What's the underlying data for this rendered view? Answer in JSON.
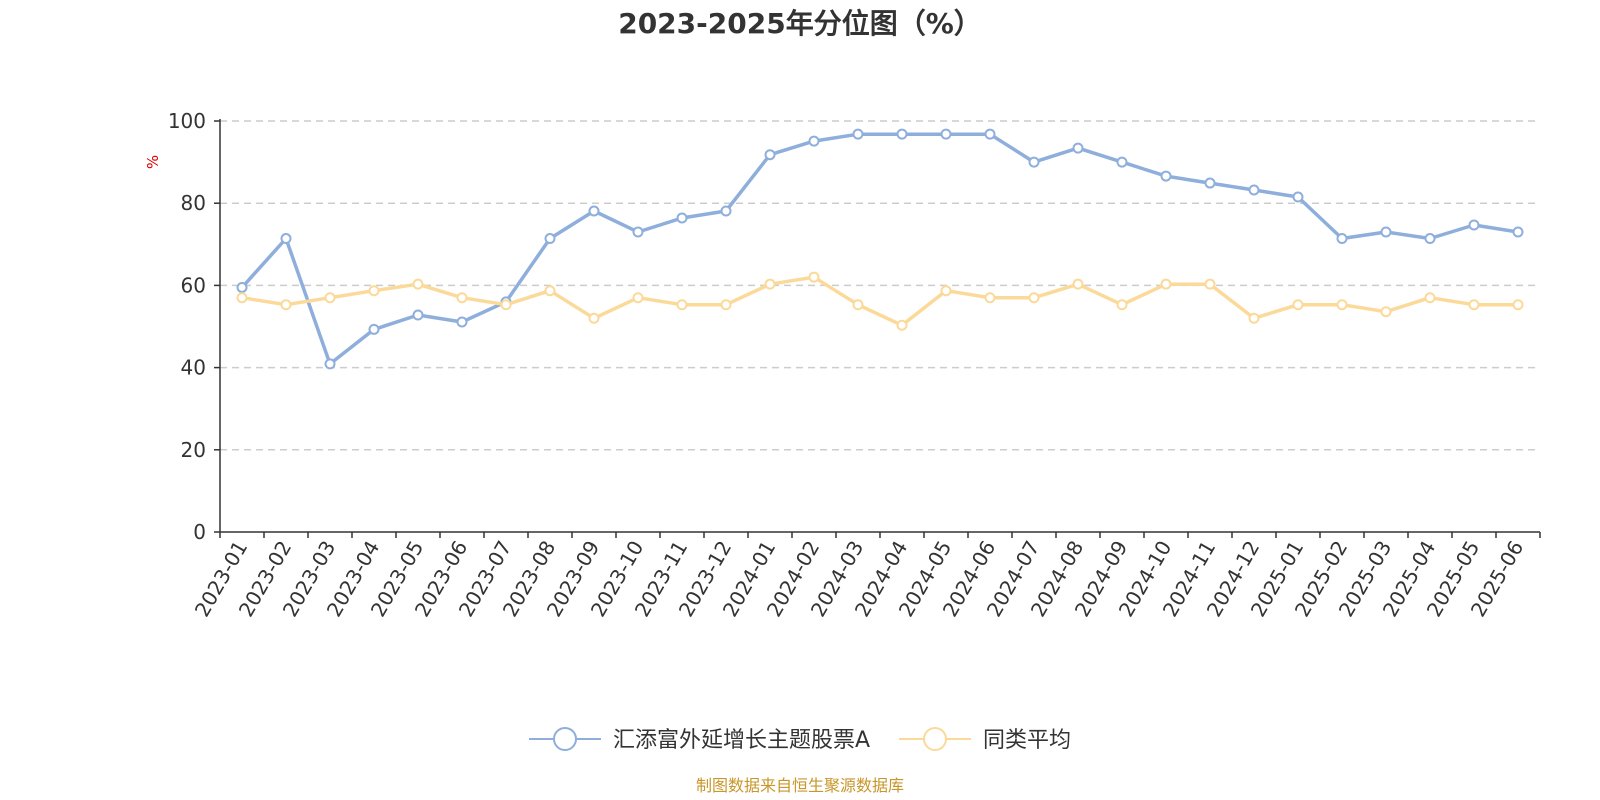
{
  "chart_data": {
    "type": "line",
    "title": "2023-2025年分位图（%）",
    "y_unit": "%",
    "ylim": [
      0,
      100
    ],
    "y_ticks": [
      0,
      20,
      40,
      60,
      80,
      100
    ],
    "grid": "horizontal-dashed",
    "legend_position": "bottom",
    "x": [
      "2023-01",
      "2023-02",
      "2023-03",
      "2023-04",
      "2023-05",
      "2023-06",
      "2023-07",
      "2023-08",
      "2023-09",
      "2023-10",
      "2023-11",
      "2023-12",
      "2024-01",
      "2024-02",
      "2024-03",
      "2024-04",
      "2024-05",
      "2024-06",
      "2024-07",
      "2024-08",
      "2024-09",
      "2024-10",
      "2024-11",
      "2024-12",
      "2025-01",
      "2025-02",
      "2025-03",
      "2025-04",
      "2025-05",
      "2025-06"
    ],
    "series": [
      {
        "name": "汇添富外延增长主题股票A",
        "color": "#8eaedb",
        "values": [
          59.5,
          71.4,
          40.9,
          49.3,
          52.8,
          51.1,
          56.0,
          71.4,
          78.1,
          73.0,
          76.4,
          78.1,
          91.8,
          95.1,
          96.8,
          96.8,
          96.8,
          96.8,
          90.0,
          93.4,
          90.0,
          86.6,
          84.9,
          83.2,
          81.5,
          71.4,
          73.0,
          71.4,
          74.7,
          73.0
        ]
      },
      {
        "name": "同类平均",
        "color": "#fbd999",
        "values": [
          57.0,
          55.3,
          57.0,
          58.7,
          60.3,
          57.0,
          55.3,
          58.7,
          52.0,
          57.0,
          55.3,
          55.3,
          60.3,
          62.0,
          55.3,
          50.3,
          58.7,
          57.0,
          57.0,
          60.3,
          55.3,
          60.3,
          60.3,
          52.0,
          55.3,
          55.3,
          53.6,
          57.0,
          55.3,
          55.3
        ]
      }
    ]
  },
  "source_text": "制图数据来自恒生聚源数据库",
  "colors": {
    "axis": "#333333",
    "grid": "#cccccc",
    "unit": "#e00000",
    "source": "#c8962a"
  }
}
